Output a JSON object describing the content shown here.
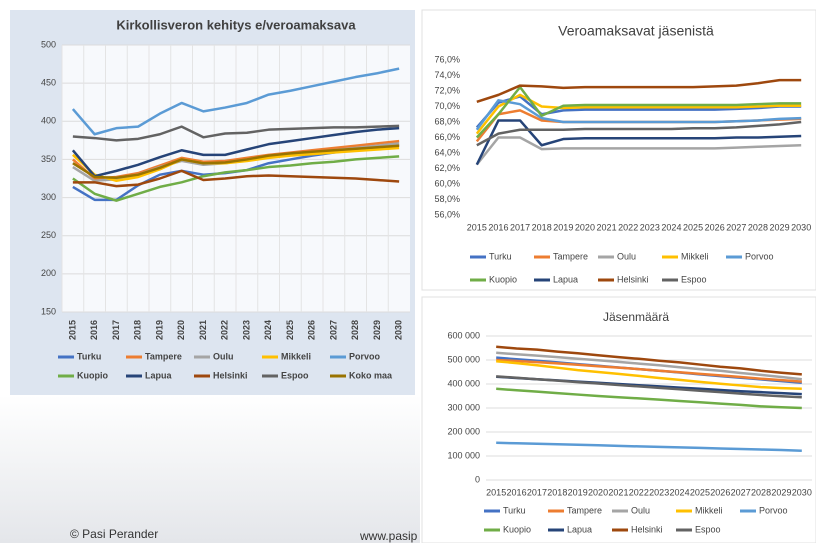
{
  "chart_data": [
    {
      "type": "line",
      "title": "Kirkollisveron kehitys e/veroamaksava",
      "categories": [
        "2015",
        "2016",
        "2017",
        "2018",
        "2019",
        "2020",
        "2021",
        "2022",
        "2023",
        "2024",
        "2025",
        "2026",
        "2027",
        "2028",
        "2029",
        "2030"
      ],
      "ylim": [
        150,
        500
      ],
      "yticks": [
        150,
        200,
        250,
        300,
        350,
        400,
        450,
        500
      ],
      "grid": true,
      "series": [
        {
          "name": "Turku",
          "color": "#4472c4",
          "values": [
            314,
            297,
            297,
            316,
            330,
            335,
            330,
            332,
            336,
            345,
            350,
            355,
            359,
            363,
            366,
            369
          ]
        },
        {
          "name": "Tampere",
          "color": "#ed7d31",
          "values": [
            350,
            325,
            327,
            332,
            342,
            352,
            347,
            348,
            352,
            356,
            359,
            362,
            365,
            368,
            371,
            374
          ]
        },
        {
          "name": "Oulu",
          "color": "#a5a5a5",
          "values": [
            340,
            322,
            324,
            330,
            340,
            348,
            343,
            345,
            349,
            353,
            356,
            359,
            362,
            365,
            368,
            371
          ]
        },
        {
          "name": "Mikkeli",
          "color": "#ffc000",
          "values": [
            356,
            330,
            322,
            327,
            337,
            350,
            345,
            345,
            348,
            352,
            355,
            357,
            359,
            361,
            363,
            365
          ]
        },
        {
          "name": "Porvoo",
          "color": "#5b9bd5",
          "values": [
            416,
            383,
            391,
            393,
            410,
            424,
            413,
            418,
            424,
            435,
            440,
            446,
            452,
            458,
            463,
            469
          ]
        },
        {
          "name": "Kuopio",
          "color": "#70ad47",
          "values": [
            325,
            305,
            296,
            305,
            314,
            320,
            328,
            333,
            336,
            340,
            342,
            345,
            347,
            350,
            352,
            354
          ]
        },
        {
          "name": "Lapua",
          "color": "#264478",
          "values": [
            362,
            328,
            335,
            343,
            353,
            362,
            356,
            356,
            363,
            370,
            374,
            378,
            382,
            386,
            389,
            391
          ]
        },
        {
          "name": "Helsinki",
          "color": "#9e480e",
          "values": [
            320,
            320,
            315,
            317,
            325,
            335,
            323,
            325,
            328,
            329,
            328,
            327,
            326,
            325,
            323,
            321
          ]
        },
        {
          "name": "Espoo",
          "color": "#636363",
          "values": [
            380,
            378,
            375,
            377,
            383,
            393,
            379,
            384,
            385,
            389,
            390,
            391,
            392,
            392,
            393,
            394
          ]
        },
        {
          "name": "Koko maa",
          "color": "#997300",
          "values": [
            345,
            327,
            326,
            330,
            339,
            350,
            345,
            346,
            350,
            355,
            358,
            360,
            362,
            364,
            366,
            368
          ]
        }
      ]
    },
    {
      "type": "line",
      "title": "Veroamaksavat jäsenistä",
      "categories": [
        "2015",
        "2016",
        "2017",
        "2018",
        "2019",
        "2020",
        "2021",
        "2022",
        "2023",
        "2024",
        "2025",
        "2026",
        "2027",
        "2028",
        "2029",
        "2030"
      ],
      "ylim": [
        56,
        76
      ],
      "yticks": [
        {
          "value": 56,
          "label": "56,0%"
        },
        {
          "value": 58,
          "label": "58,0%"
        },
        {
          "value": 60,
          "label": "60,0%"
        },
        {
          "value": 62,
          "label": "62,0%"
        },
        {
          "value": 64,
          "label": "64,0%"
        },
        {
          "value": 66,
          "label": "66,0%"
        },
        {
          "value": 68,
          "label": "68,0%"
        },
        {
          "value": 70,
          "label": "70,0%"
        },
        {
          "value": 72,
          "label": "72,0%"
        },
        {
          "value": 74,
          "label": "74,0%"
        },
        {
          "value": 76,
          "label": "76,0%"
        }
      ],
      "grid": false,
      "series": [
        {
          "name": "Turku",
          "color": "#4472c4",
          "values": [
            67.3,
            70.5,
            71.3,
            69.0,
            69.5,
            69.6,
            69.6,
            69.6,
            69.6,
            69.6,
            69.6,
            69.6,
            69.7,
            69.8,
            70.0,
            70.0
          ]
        },
        {
          "name": "Tampere",
          "color": "#ed7d31",
          "values": [
            65.5,
            69.0,
            69.5,
            68.2,
            68.0,
            68.0,
            68.0,
            68.0,
            68.0,
            68.0,
            68.0,
            68.0,
            68.1,
            68.2,
            68.3,
            68.4
          ]
        },
        {
          "name": "Oulu",
          "color": "#a5a5a5",
          "values": [
            62.5,
            66.0,
            66.0,
            64.5,
            64.6,
            64.6,
            64.6,
            64.6,
            64.6,
            64.6,
            64.6,
            64.6,
            64.7,
            64.8,
            64.9,
            65.0
          ]
        },
        {
          "name": "Mikkeli",
          "color": "#ffc000",
          "values": [
            66.5,
            70.0,
            71.5,
            70.0,
            69.8,
            69.9,
            69.9,
            69.9,
            69.9,
            69.9,
            69.9,
            69.9,
            69.9,
            70.0,
            70.1,
            70.1
          ]
        },
        {
          "name": "Porvoo",
          "color": "#5b9bd5",
          "values": [
            67.0,
            70.8,
            70.3,
            68.5,
            68.0,
            68.0,
            68.0,
            68.0,
            68.0,
            68.0,
            68.0,
            68.0,
            68.1,
            68.2,
            68.4,
            68.5
          ]
        },
        {
          "name": "Kuopio",
          "color": "#70ad47",
          "values": [
            66.0,
            69.0,
            72.5,
            68.8,
            70.1,
            70.2,
            70.2,
            70.2,
            70.2,
            70.2,
            70.2,
            70.2,
            70.2,
            70.3,
            70.4,
            70.4
          ]
        },
        {
          "name": "Lapua",
          "color": "#264478",
          "values": [
            62.5,
            68.2,
            68.2,
            65.0,
            65.8,
            65.9,
            65.9,
            65.9,
            65.9,
            65.9,
            65.9,
            65.9,
            66.0,
            66.0,
            66.1,
            66.2
          ]
        },
        {
          "name": "Helsinki",
          "color": "#9e480e",
          "values": [
            70.6,
            71.5,
            72.7,
            72.6,
            72.4,
            72.5,
            72.5,
            72.5,
            72.5,
            72.5,
            72.5,
            72.6,
            72.7,
            73.0,
            73.4,
            73.4
          ]
        },
        {
          "name": "Espoo",
          "color": "#636363",
          "values": [
            65.0,
            66.5,
            67.0,
            67.0,
            67.0,
            67.1,
            67.1,
            67.1,
            67.1,
            67.1,
            67.2,
            67.2,
            67.3,
            67.5,
            67.7,
            68.0
          ]
        }
      ]
    },
    {
      "type": "line",
      "title": "Jäsenmäärä",
      "categories": [
        "2015",
        "2016",
        "2017",
        "2018",
        "2019",
        "2020",
        "2021",
        "2022",
        "2023",
        "2024",
        "2025",
        "2026",
        "2027",
        "2028",
        "2029",
        "2030"
      ],
      "ylim": [
        0,
        600000
      ],
      "yticks": [
        0,
        {
          "value": 100000,
          "label": "100 000"
        },
        {
          "value": 200000,
          "label": "200 000"
        },
        {
          "value": 300000,
          "label": "300 000"
        },
        {
          "value": 400000,
          "label": "400 000"
        },
        {
          "value": 500000,
          "label": "500 000"
        },
        {
          "value": 600000,
          "label": "600 000"
        }
      ],
      "grid": true,
      "series": [
        {
          "name": "Turku",
          "color": "#4472c4",
          "values": [
            510000,
            503000,
            497000,
            490000,
            483000,
            476000,
            469000,
            462000,
            455000,
            448000,
            440000,
            433000,
            426000,
            419000,
            412000,
            405000
          ]
        },
        {
          "name": "Tampere",
          "color": "#ed7d31",
          "values": [
            500000,
            496000,
            491000,
            486000,
            480000,
            474000,
            468000,
            462000,
            455000,
            449000,
            442000,
            436000,
            429000,
            422000,
            416000,
            410000
          ]
        },
        {
          "name": "Oulu",
          "color": "#a5a5a5",
          "values": [
            530000,
            524000,
            518000,
            512000,
            505000,
            499000,
            492000,
            485000,
            478000,
            470000,
            462000,
            455000,
            446000,
            438000,
            429000,
            420000
          ]
        },
        {
          "name": "Mikkeli",
          "color": "#ffc000",
          "values": [
            495000,
            487000,
            478000,
            468000,
            458000,
            450000,
            442000,
            434000,
            425000,
            417000,
            409000,
            401000,
            394000,
            387000,
            383000,
            380000
          ]
        },
        {
          "name": "Porvoo",
          "color": "#5b9bd5",
          "values": [
            155000,
            153000,
            151000,
            149000,
            147000,
            145000,
            142000,
            140000,
            138000,
            136000,
            134000,
            131000,
            129000,
            127000,
            125000,
            122000
          ]
        },
        {
          "name": "Kuopio",
          "color": "#70ad47",
          "values": [
            380000,
            374000,
            368000,
            362000,
            356000,
            350000,
            345000,
            340000,
            335000,
            329000,
            324000,
            318000,
            313000,
            307000,
            303000,
            300000
          ]
        },
        {
          "name": "Lapua",
          "color": "#264478",
          "values": [
            430000,
            425000,
            420000,
            415000,
            410000,
            405000,
            400000,
            395000,
            390000,
            385000,
            380000,
            375000,
            370000,
            366000,
            362000,
            358000
          ]
        },
        {
          "name": "Helsinki",
          "color": "#9e480e",
          "values": [
            555000,
            548000,
            543000,
            535000,
            528000,
            520000,
            512000,
            505000,
            497000,
            490000,
            481000,
            472000,
            465000,
            455000,
            447000,
            440000
          ]
        },
        {
          "name": "Espoo",
          "color": "#636363",
          "values": [
            432000,
            426000,
            420000,
            414000,
            408000,
            402000,
            396000,
            390000,
            384000,
            378000,
            372000,
            366000,
            360000,
            354000,
            349000,
            345000
          ]
        }
      ]
    }
  ],
  "footer": {
    "left": "© Pasi Perander",
    "right": "www.pasip"
  }
}
